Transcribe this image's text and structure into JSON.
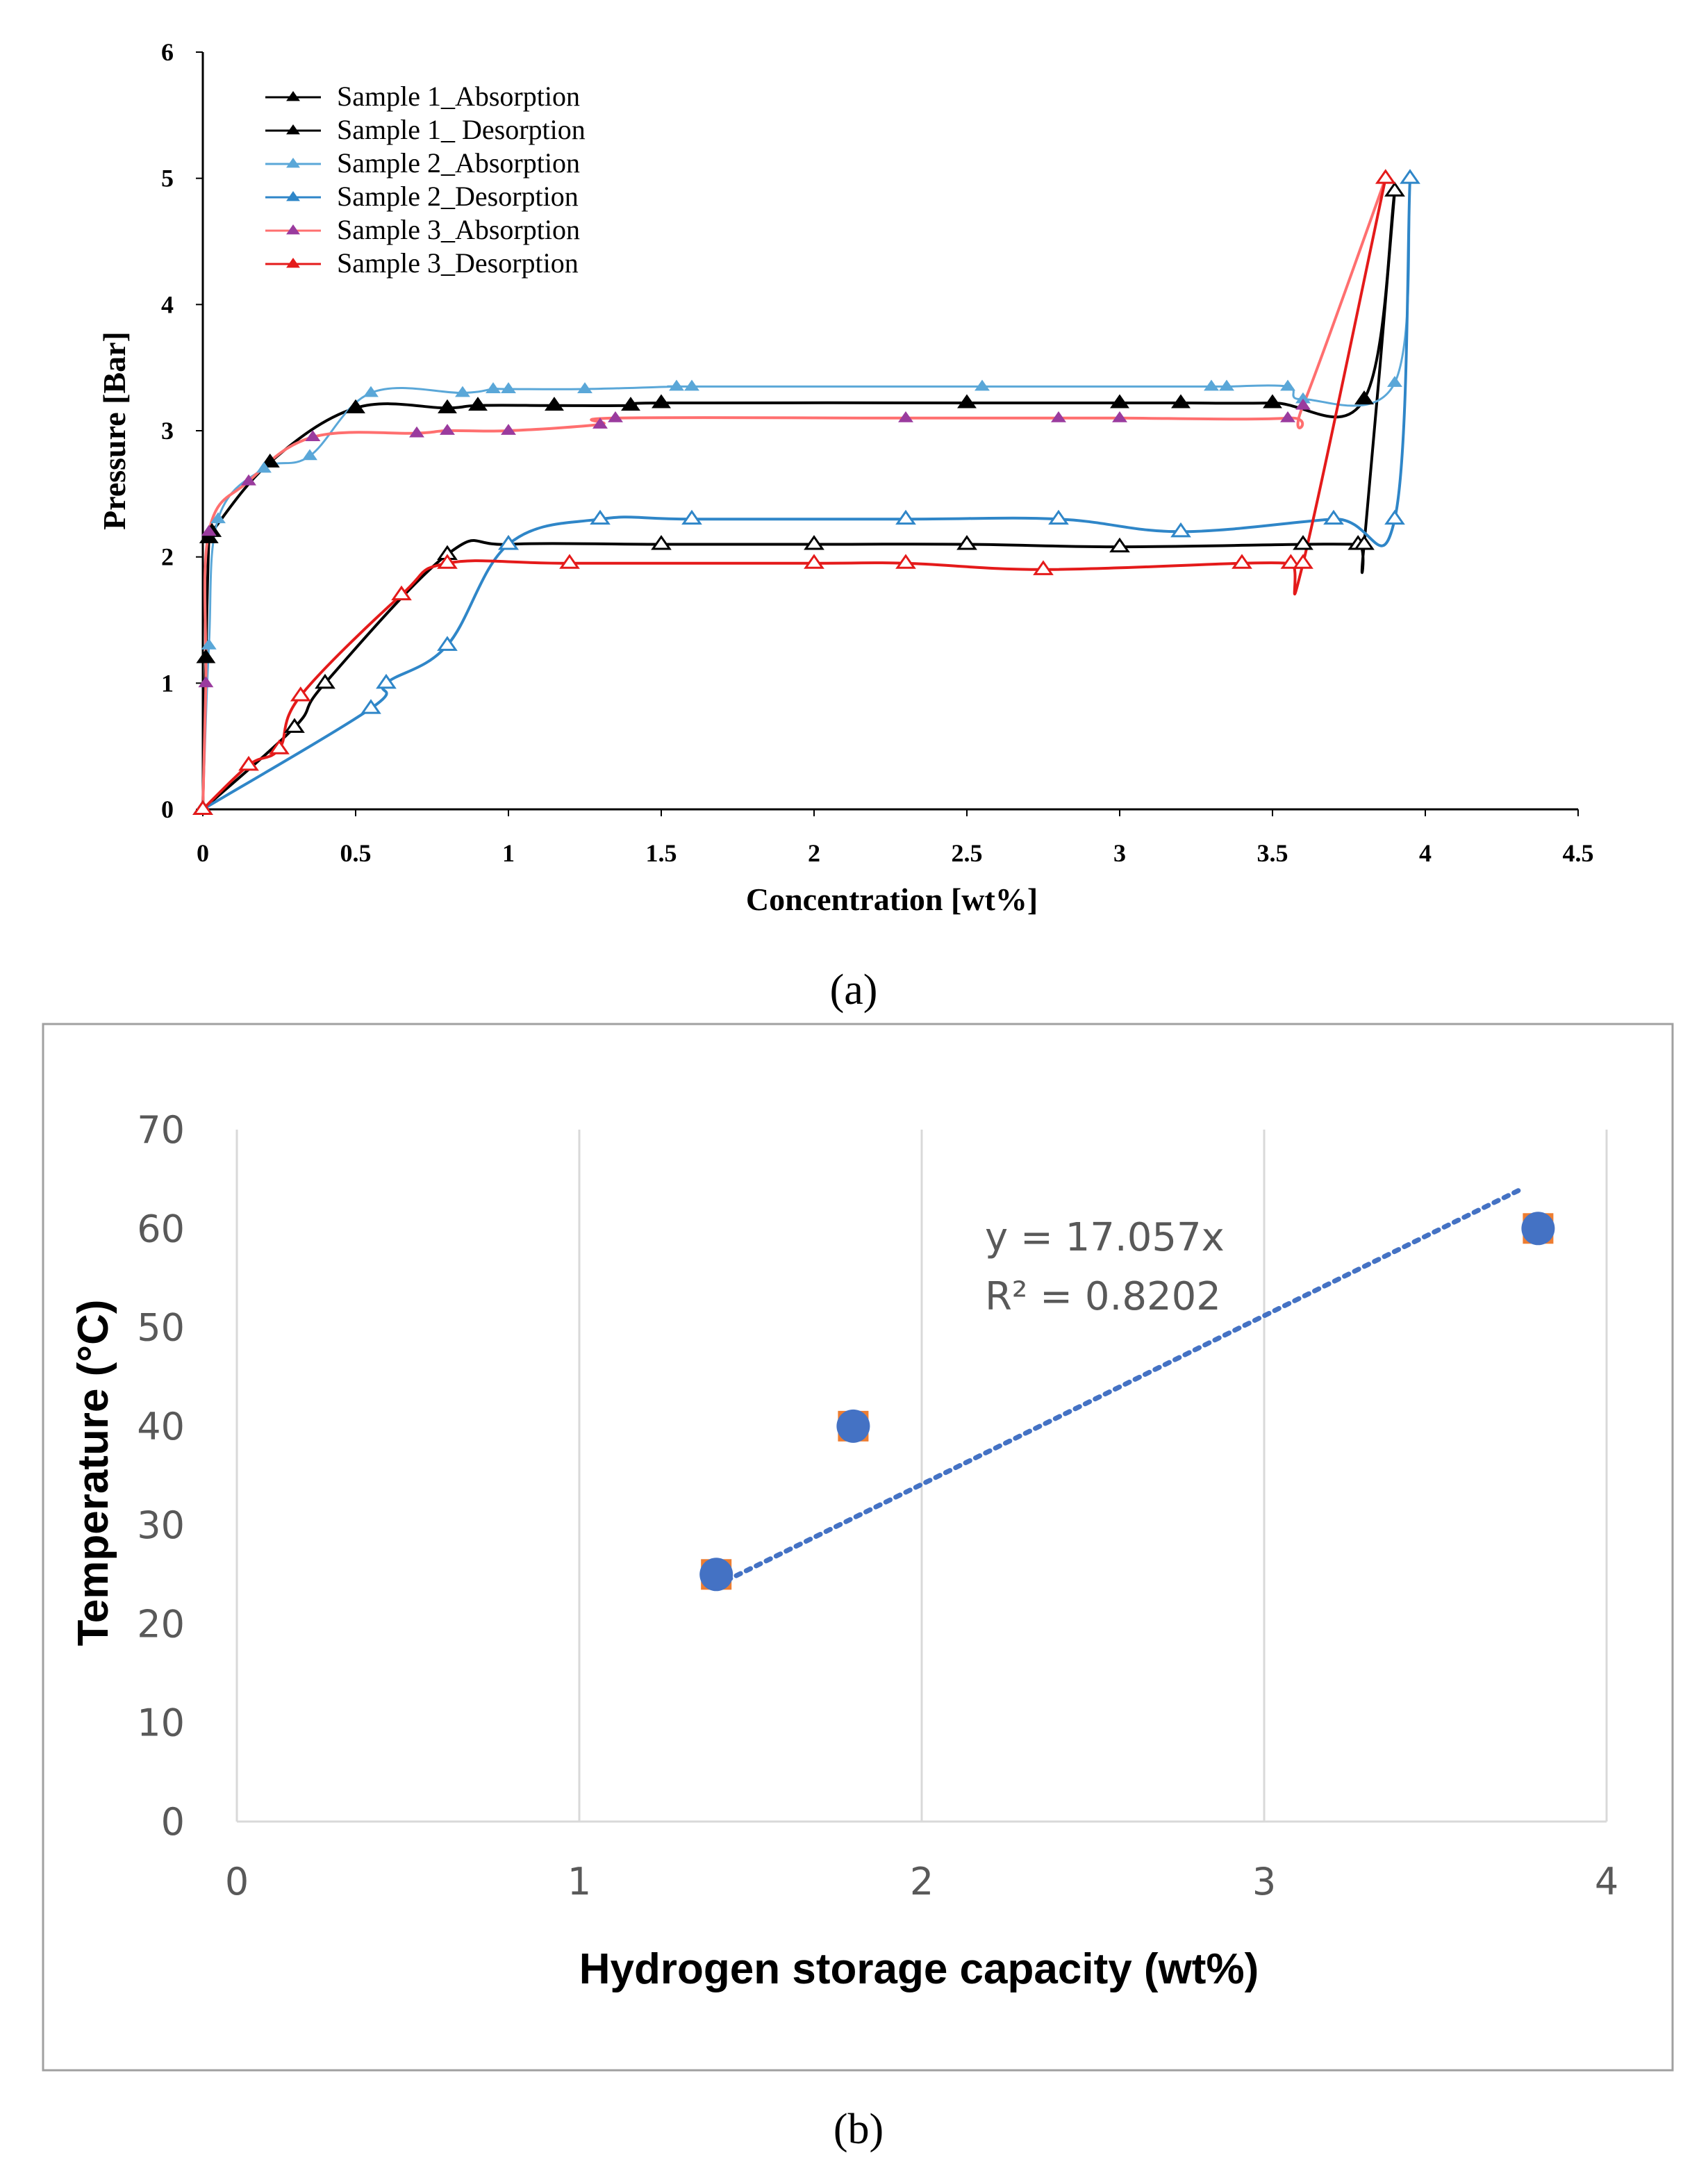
{
  "chart_data": [
    {
      "type": "line",
      "panel_label": "(a)",
      "xlabel": "Concentration [wt%]",
      "ylabel": "Pressure [Bar]",
      "xlim": [
        0,
        4.5
      ],
      "ylim": [
        0,
        6
      ],
      "xticks": [
        "0",
        "0.5",
        "1",
        "1.5",
        "2",
        "2.5",
        "3",
        "3.5",
        "4",
        "4.5"
      ],
      "yticks": [
        "0",
        "1",
        "2",
        "3",
        "4",
        "5",
        "6"
      ],
      "legend_position": "top-left",
      "series": [
        {
          "name": "Sample 1_Absorption",
          "color": "#000000",
          "marker": "triangle-filled",
          "x": [
            0,
            0.01,
            0.02,
            0.03,
            0.22,
            0.5,
            0.8,
            0.9,
            1.15,
            1.4,
            1.5,
            2.5,
            3.0,
            3.2,
            3.5,
            3.8,
            3.9
          ],
          "y": [
            0,
            1.2,
            2.15,
            2.2,
            2.75,
            3.18,
            3.18,
            3.2,
            3.2,
            3.2,
            3.22,
            3.22,
            3.22,
            3.22,
            3.22,
            3.25,
            4.9
          ]
        },
        {
          "name": "Sample 1_ Desorption",
          "color": "#000000",
          "marker": "triangle-open",
          "x": [
            0,
            0.3,
            0.4,
            0.8,
            1.0,
            1.5,
            2.0,
            2.5,
            3.0,
            3.6,
            3.78,
            3.8,
            3.9
          ],
          "y": [
            0,
            0.65,
            1.0,
            2.02,
            2.1,
            2.1,
            2.1,
            2.1,
            2.08,
            2.1,
            2.1,
            2.1,
            4.9
          ]
        },
        {
          "name": "Sample 2_Absorption",
          "color": "#5aa7d8",
          "marker": "triangle-small",
          "x": [
            0,
            0.02,
            0.05,
            0.2,
            0.35,
            0.55,
            0.85,
            0.95,
            1.0,
            1.25,
            1.55,
            1.6,
            2.55,
            3.3,
            3.35,
            3.55,
            3.6,
            3.9,
            3.95
          ],
          "y": [
            0,
            1.3,
            2.3,
            2.7,
            2.8,
            3.3,
            3.3,
            3.33,
            3.33,
            3.33,
            3.35,
            3.35,
            3.35,
            3.35,
            3.35,
            3.35,
            3.25,
            3.38,
            5.0
          ]
        },
        {
          "name": "Sample 2_Desorption",
          "color": "#2f86c8",
          "marker": "triangle-open",
          "x": [
            0,
            0.55,
            0.6,
            0.8,
            1.0,
            1.3,
            1.6,
            2.3,
            2.8,
            3.2,
            3.7,
            3.9,
            3.95
          ],
          "y": [
            0,
            0.8,
            1.0,
            1.3,
            2.1,
            2.3,
            2.3,
            2.3,
            2.3,
            2.2,
            2.3,
            2.3,
            5.0
          ]
        },
        {
          "name": "Sample 3_Absorption",
          "color": "#ff6f6f",
          "marker": "triangle-purple",
          "x": [
            0,
            0.01,
            0.02,
            0.15,
            0.36,
            0.7,
            0.8,
            1.0,
            1.3,
            1.35,
            2.3,
            2.8,
            3.0,
            3.55,
            3.6,
            3.87
          ],
          "y": [
            0,
            1.0,
            2.2,
            2.6,
            2.95,
            2.98,
            3.0,
            3.0,
            3.05,
            3.1,
            3.1,
            3.1,
            3.1,
            3.1,
            3.2,
            5.0
          ]
        },
        {
          "name": "Sample 3_Desorption",
          "color": "#e41a1a",
          "marker": "triangle-open",
          "x": [
            0,
            0.15,
            0.25,
            0.32,
            0.65,
            0.8,
            1.2,
            2.0,
            2.3,
            2.75,
            3.4,
            3.56,
            3.6,
            3.87
          ],
          "y": [
            0,
            0.35,
            0.48,
            0.9,
            1.7,
            1.95,
            1.95,
            1.95,
            1.95,
            1.9,
            1.95,
            1.95,
            1.95,
            5.0
          ]
        }
      ]
    },
    {
      "type": "scatter",
      "panel_label": "(b)",
      "xlabel": "Hydrogen storage capacity (wt%)",
      "ylabel": "Temperature (°C)",
      "xlim": [
        0,
        4
      ],
      "ylim": [
        0,
        70
      ],
      "xticks": [
        "0",
        "1",
        "2",
        "3",
        "4"
      ],
      "yticks": [
        "0",
        "10",
        "20",
        "30",
        "40",
        "50",
        "60",
        "70"
      ],
      "grid": "vertical",
      "series": [
        {
          "name": "data",
          "color": "#4472c4",
          "edge_color": "#ed7d31",
          "x": [
            1.4,
            1.8,
            3.8
          ],
          "y": [
            25,
            40,
            60
          ]
        }
      ],
      "trendline": {
        "type": "linear",
        "slope": 17.057,
        "x": [
          1.4,
          3.75
        ],
        "color": "#4472c4",
        "style": "dotted"
      },
      "annotations": [
        "y = 17.057x",
        "R² = 0.8202"
      ]
    }
  ]
}
